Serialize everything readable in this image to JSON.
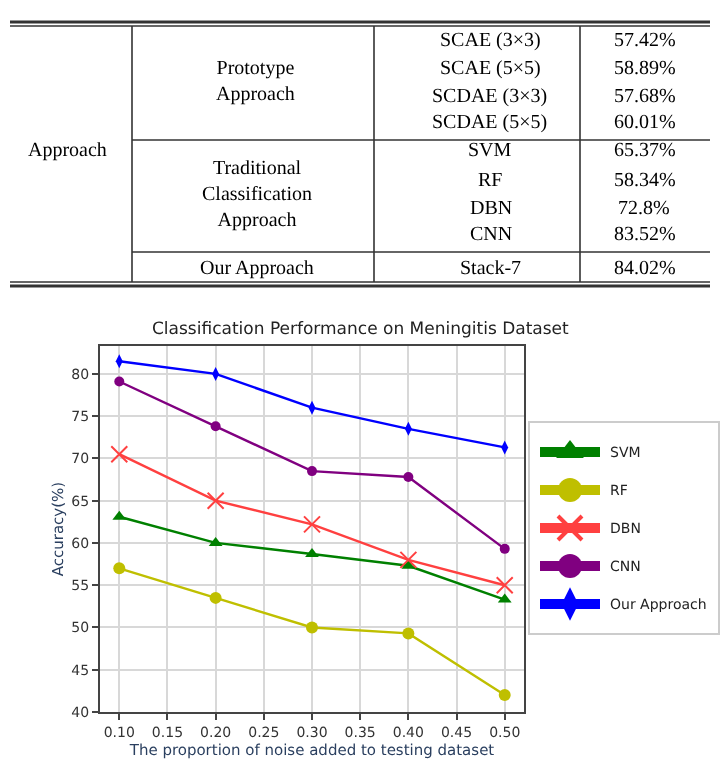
{
  "chart_data": [
    {
      "type": "other",
      "annotations": [
        "Approach",
        "Prototype\nApproach",
        "SCAE (3×3)",
        "57.42%",
        "SCAE (5×5)",
        "58.89%",
        "SCDAE (3×3)",
        "57.68%",
        "SCDAE (5×5)",
        "60.01%",
        "Traditional\nClassification\nApproach",
        "SVM",
        "65.37%",
        "RF",
        "58.34%",
        "DBN",
        "72.8%",
        "CNN",
        "83.52%",
        "Our Approach",
        "Stack-7",
        "84.02%"
      ]
    },
    {
      "type": "line",
      "title": "Classification Performance on Meningitis Dataset",
      "xlabel": "The proportion of noise added to testing dataset",
      "ylabel": "Accuracy(%)",
      "x": [
        0.1,
        0.2,
        0.3,
        0.4,
        0.5
      ],
      "series": [
        {
          "name": "SVM",
          "color": "#008000",
          "marker": "triangle",
          "values": [
            63.1,
            60,
            58.7,
            57.3,
            53.3
          ]
        },
        {
          "name": "RF",
          "color": "#bfbf00",
          "marker": "circle",
          "values": [
            57,
            53.5,
            50,
            49.3,
            42
          ]
        },
        {
          "name": "DBN",
          "color": "#ff4040",
          "marker": "cross",
          "values": [
            70.5,
            65,
            62.2,
            58,
            55
          ]
        },
        {
          "name": "CNN",
          "color": "#800080",
          "marker": "circle",
          "values": [
            79.1,
            73.8,
            68.5,
            67.8,
            59.3
          ]
        },
        {
          "name": "Our Approach",
          "color": "#0000ff",
          "marker": "diamond",
          "values": [
            81.5,
            80,
            76,
            73.5,
            71.3
          ]
        }
      ],
      "xlim": [
        0.08,
        0.52
      ],
      "ylim": [
        40,
        83.3
      ],
      "xticks": [
        {
          "value": 0.1,
          "label": "0.10"
        },
        {
          "value": 0.15,
          "label": "0.15"
        },
        {
          "value": 0.2,
          "label": "0.20"
        },
        {
          "value": 0.25,
          "label": "0.25"
        },
        {
          "value": 0.3,
          "label": "0.30"
        },
        {
          "value": 0.35,
          "label": "0.35"
        },
        {
          "value": 0.4,
          "label": "0.40"
        },
        {
          "value": 0.45,
          "label": "0.45"
        },
        {
          "value": 0.5,
          "label": "0.50"
        }
      ],
      "yticks": [
        40,
        45,
        50,
        55,
        60,
        65,
        70,
        75,
        80
      ],
      "grid": true,
      "legend": "right",
      "line_style": "solid"
    }
  ]
}
